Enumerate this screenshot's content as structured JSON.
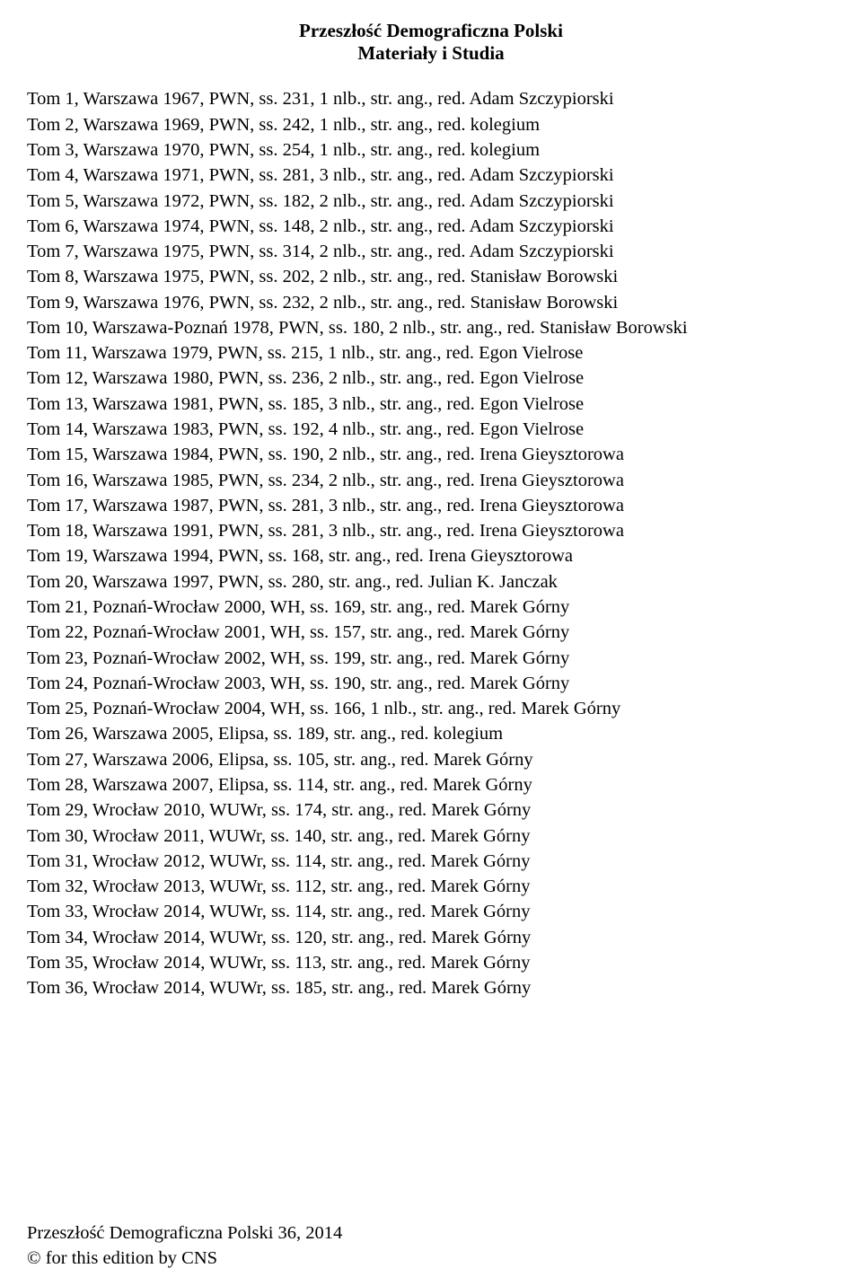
{
  "header": {
    "title_line1": "Przeszłość Demograficzna Polski",
    "title_line2": "Materiały i Studia"
  },
  "typography": {
    "font_family": "Times New Roman",
    "title_fontsize_pt": 16,
    "title_fontweight": "bold",
    "body_fontsize_pt": 15,
    "line_height": 1.38,
    "text_color": "#000000",
    "background_color": "#ffffff"
  },
  "entries": [
    "Tom 1, Warszawa 1967, PWN, ss. 231, 1 nlb., str. ang., red. Adam Szczypiorski",
    "Tom 2, Warszawa 1969, PWN, ss. 242, 1 nlb., str. ang., red. kolegium",
    "Tom 3, Warszawa 1970, PWN, ss. 254, 1 nlb., str. ang., red. kolegium",
    "Tom 4, Warszawa 1971, PWN, ss. 281, 3 nlb., str. ang., red. Adam Szczypiorski",
    "Tom 5, Warszawa 1972, PWN, ss. 182, 2 nlb., str. ang., red. Adam Szczypiorski",
    "Tom 6, Warszawa 1974, PWN, ss. 148, 2 nlb., str. ang., red. Adam Szczypiorski",
    "Tom 7, Warszawa 1975, PWN, ss. 314, 2 nlb., str. ang., red. Adam Szczypiorski",
    "Tom 8, Warszawa 1975, PWN, ss. 202, 2 nlb., str. ang., red. Stanisław Borowski",
    "Tom 9, Warszawa 1976, PWN, ss. 232, 2 nlb., str. ang., red. Stanisław Borowski",
    "Tom 10, Warszawa-Poznań 1978, PWN, ss. 180, 2 nlb., str. ang., red. Stanisław Borowski",
    "Tom 11, Warszawa 1979, PWN, ss. 215, 1 nlb., str. ang., red. Egon Vielrose",
    "Tom 12, Warszawa 1980, PWN, ss. 236, 2 nlb., str. ang., red. Egon Vielrose",
    "Tom 13, Warszawa 1981, PWN, ss. 185, 3 nlb., str. ang., red. Egon Vielrose",
    "Tom 14, Warszawa 1983, PWN, ss. 192, 4 nlb., str. ang., red. Egon Vielrose",
    "Tom 15, Warszawa 1984, PWN, ss. 190, 2 nlb., str. ang., red. Irena Gieysztorowa",
    "Tom 16, Warszawa 1985, PWN, ss. 234, 2 nlb., str. ang., red. Irena Gieysztorowa",
    "Tom 17, Warszawa 1987, PWN, ss. 281, 3 nlb., str. ang., red. Irena Gieysztorowa",
    "Tom 18, Warszawa 1991, PWN, ss. 281, 3 nlb., str. ang., red. Irena Gieysztorowa",
    "Tom 19, Warszawa 1994, PWN, ss. 168, str. ang., red. Irena Gieysztorowa",
    "Tom 20, Warszawa 1997, PWN, ss. 280, str. ang., red. Julian K. Janczak",
    "Tom 21, Poznań-Wrocław 2000, WH, ss. 169, str. ang., red. Marek Górny",
    "Tom 22, Poznań-Wrocław 2001, WH, ss. 157, str. ang., red. Marek Górny",
    "Tom 23, Poznań-Wrocław 2002, WH, ss. 199, str. ang., red. Marek Górny",
    "Tom 24, Poznań-Wrocław 2003, WH, ss. 190, str. ang., red. Marek Górny",
    "Tom 25, Poznań-Wrocław 2004, WH, ss. 166, 1 nlb., str. ang., red. Marek Górny",
    "Tom 26, Warszawa 2005, Elipsa, ss. 189, str. ang., red. kolegium",
    "Tom 27, Warszawa 2006, Elipsa, ss. 105, str. ang., red. Marek Górny",
    "Tom 28, Warszawa 2007, Elipsa, ss. 114, str. ang., red. Marek Górny",
    "Tom 29, Wrocław 2010, WUWr, ss. 174, str. ang., red. Marek Górny",
    "Tom 30, Wrocław 2011, WUWr, ss. 140, str. ang., red. Marek Górny",
    "Tom 31, Wrocław 2012, WUWr, ss. 114, str. ang., red. Marek Górny",
    "Tom 32, Wrocław 2013, WUWr, ss. 112, str. ang., red. Marek Górny",
    "Tom 33, Wrocław 2014, WUWr, ss. 114, str. ang., red. Marek Górny",
    "Tom 34, Wrocław 2014, WUWr, ss. 120, str. ang., red. Marek Górny",
    "Tom 35, Wrocław 2014, WUWr, ss. 113, str. ang., red. Marek Górny",
    "Tom 36, Wrocław 2014, WUWr, ss. 185, str. ang., red. Marek Górny"
  ],
  "footer": {
    "line1": "Przeszłość Demograficzna Polski 36, 2014",
    "line2": "© for this edition by CNS"
  }
}
